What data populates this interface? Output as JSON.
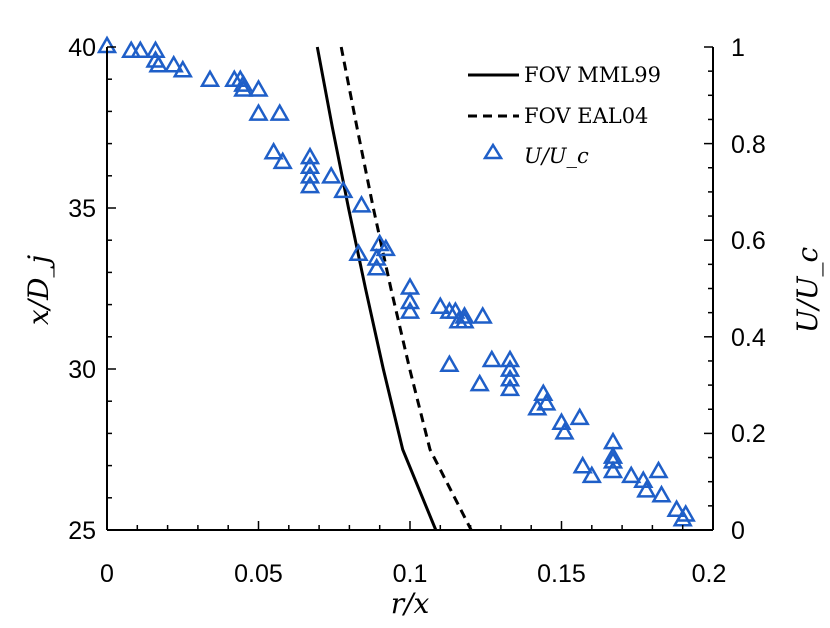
{
  "chart_data": {
    "type": "scatter",
    "xlabel": "r/x",
    "ylabel_left": "x/D_j",
    "ylabel_right": "U/U_c",
    "xlim": [
      0,
      0.2
    ],
    "ylim_left": [
      25,
      40
    ],
    "ylim_right": [
      0,
      1
    ],
    "x_ticks": [
      "0",
      "0.05",
      "0.1",
      "0.15",
      "0.2"
    ],
    "y_left_ticks": [
      "25",
      "30",
      "35",
      "40"
    ],
    "y_right_ticks": [
      "0",
      "0.2",
      "0.4",
      "0.6",
      "0.8",
      "1"
    ],
    "colors": {
      "marker": "#1f5fc8",
      "line": "#000000"
    },
    "legend_position": "top-right",
    "series": [
      {
        "name": "FOV MML99",
        "kind": "line",
        "style": "solid",
        "axis": "left",
        "points": [
          [
            0.0694,
            40
          ],
          [
            0.0744,
            37.5
          ],
          [
            0.0797,
            35
          ],
          [
            0.0853,
            32.5
          ],
          [
            0.0912,
            30
          ],
          [
            0.0976,
            27.5
          ],
          [
            0.1085,
            25
          ]
        ]
      },
      {
        "name": "FOV EAL04",
        "kind": "line",
        "style": "dashed",
        "axis": "left",
        "points": [
          [
            0.0773,
            40
          ],
          [
            0.0825,
            37.5
          ],
          [
            0.0879,
            35
          ],
          [
            0.0937,
            32.5
          ],
          [
            0.0999,
            30
          ],
          [
            0.1066,
            27.5
          ],
          [
            0.1202,
            25
          ]
        ]
      },
      {
        "name": "U/U_c",
        "kind": "scatter",
        "marker": "triangle",
        "axis": "right",
        "points": [
          [
            0.0,
            1.0
          ],
          [
            0.008,
            0.99
          ],
          [
            0.011,
            0.99
          ],
          [
            0.016,
            0.99
          ],
          [
            0.016,
            0.97
          ],
          [
            0.017,
            0.96
          ],
          [
            0.022,
            0.96
          ],
          [
            0.025,
            0.95
          ],
          [
            0.034,
            0.93
          ],
          [
            0.042,
            0.93
          ],
          [
            0.044,
            0.93
          ],
          [
            0.045,
            0.92
          ],
          [
            0.045,
            0.91
          ],
          [
            0.05,
            0.91
          ],
          [
            0.05,
            0.86
          ],
          [
            0.057,
            0.86
          ],
          [
            0.055,
            0.78
          ],
          [
            0.058,
            0.76
          ],
          [
            0.067,
            0.77
          ],
          [
            0.067,
            0.75
          ],
          [
            0.067,
            0.73
          ],
          [
            0.067,
            0.71
          ],
          [
            0.074,
            0.73
          ],
          [
            0.078,
            0.7
          ],
          [
            0.084,
            0.67
          ],
          [
            0.083,
            0.57
          ],
          [
            0.09,
            0.59
          ],
          [
            0.092,
            0.58
          ],
          [
            0.089,
            0.56
          ],
          [
            0.089,
            0.54
          ],
          [
            0.1,
            0.5
          ],
          [
            0.1,
            0.47
          ],
          [
            0.1,
            0.45
          ],
          [
            0.11,
            0.46
          ],
          [
            0.113,
            0.45
          ],
          [
            0.115,
            0.45
          ],
          [
            0.118,
            0.44
          ],
          [
            0.118,
            0.43
          ],
          [
            0.116,
            0.43
          ],
          [
            0.124,
            0.44
          ],
          [
            0.113,
            0.34
          ],
          [
            0.127,
            0.35
          ],
          [
            0.123,
            0.3
          ],
          [
            0.133,
            0.35
          ],
          [
            0.133,
            0.33
          ],
          [
            0.133,
            0.31
          ],
          [
            0.133,
            0.29
          ],
          [
            0.144,
            0.28
          ],
          [
            0.145,
            0.26
          ],
          [
            0.142,
            0.25
          ],
          [
            0.15,
            0.22
          ],
          [
            0.151,
            0.2
          ],
          [
            0.156,
            0.23
          ],
          [
            0.167,
            0.18
          ],
          [
            0.167,
            0.15
          ],
          [
            0.167,
            0.14
          ],
          [
            0.157,
            0.13
          ],
          [
            0.16,
            0.11
          ],
          [
            0.167,
            0.12
          ],
          [
            0.173,
            0.11
          ],
          [
            0.177,
            0.1
          ],
          [
            0.178,
            0.08
          ],
          [
            0.182,
            0.12
          ],
          [
            0.183,
            0.07
          ],
          [
            0.188,
            0.04
          ],
          [
            0.191,
            0.03
          ],
          [
            0.19,
            0.02
          ]
        ]
      }
    ]
  }
}
